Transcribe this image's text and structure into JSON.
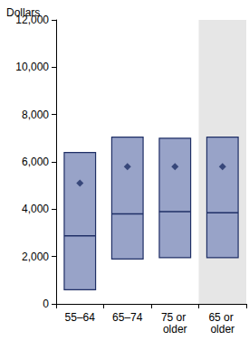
{
  "chart_data": {
    "type": "box",
    "y_label": "Dollars",
    "categories": [
      "55–64",
      "65–74",
      "75 or older",
      "65 or older"
    ],
    "q1": [
      600,
      1900,
      1950,
      1950
    ],
    "median": [
      2880,
      3800,
      3900,
      3850
    ],
    "q3": [
      6400,
      7050,
      7000,
      7050
    ],
    "mean": [
      5100,
      5800,
      5800,
      5800
    ],
    "color": "#98a3c8",
    "marker": "diamond",
    "ylim": [
      0,
      12000
    ],
    "yticks": [
      0,
      {
        "value": 2000,
        "label": "2,000"
      },
      {
        "value": 4000,
        "label": "4,000"
      },
      {
        "value": 6000,
        "label": "6,000"
      },
      {
        "value": 8000,
        "label": "8,000"
      },
      {
        "value": 10000,
        "label": "10,000"
      },
      {
        "value": 12000,
        "label": "12,000"
      }
    ],
    "grid": false
  }
}
